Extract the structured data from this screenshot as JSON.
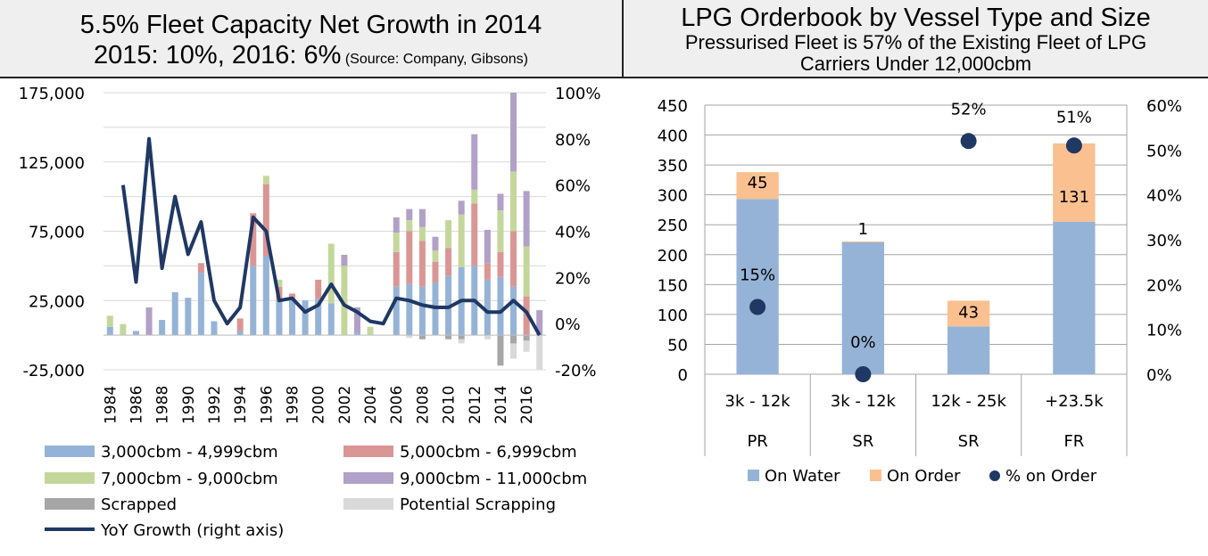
{
  "left_panel": {
    "title_line1": "5.5% Fleet Capacity Net Growth in 2014",
    "title_line2": "2015: 10%, 2016: 6%",
    "source": "(Source: Company, Gibsons)"
  },
  "right_panel": {
    "title": "LPG Orderbook by Vessel Type and Size",
    "subtitle_line1": "Pressurised Fleet is 57% of the Existing Fleet of LPG",
    "subtitle_line2": "Carriers Under 12,000cbm"
  },
  "chart_data": [
    {
      "type": "bar",
      "stacked": true,
      "title": "",
      "x": [
        1984,
        1985,
        1986,
        1987,
        1988,
        1989,
        1990,
        1991,
        1992,
        1993,
        1994,
        1995,
        1996,
        1997,
        1998,
        1999,
        2000,
        2001,
        2002,
        2003,
        2004,
        2005,
        2006,
        2007,
        2008,
        2009,
        2010,
        2011,
        2012,
        2013,
        2014,
        2015,
        2016,
        2017
      ],
      "x_tick_labels": [
        "1984",
        "1986",
        "1988",
        "1990",
        "1992",
        "1994",
        "1996",
        "1998",
        "2000",
        "2002",
        "2004",
        "2006",
        "2008",
        "2010",
        "2012",
        "2014",
        "2016"
      ],
      "y_ticks": [
        "175,000",
        "125,000",
        "75,000",
        "25,000",
        "-25,000"
      ],
      "ylim": [
        -25000,
        175000
      ],
      "y2_ticks": [
        "100%",
        "80%",
        "60%",
        "40%",
        "20%",
        "0%",
        "-20%"
      ],
      "y2lim": [
        -20,
        100
      ],
      "grid": true,
      "legend_position": "bottom",
      "series": [
        {
          "name": "3,000cbm - 4,999cbm",
          "color": "#95b3d7",
          "values": [
            6000,
            0,
            3000,
            0,
            11000,
            31000,
            27000,
            45000,
            10000,
            0,
            3000,
            50000,
            57000,
            25000,
            25000,
            25000,
            26000,
            23000,
            0,
            2000,
            0,
            0,
            35000,
            37000,
            35000,
            38000,
            43000,
            49000,
            50000,
            40000,
            42000,
            35000,
            0,
            0
          ]
        },
        {
          "name": "5,000cbm - 6,999cbm",
          "color": "#da9694",
          "values": [
            0,
            0,
            0,
            0,
            0,
            0,
            0,
            7000,
            0,
            0,
            9000,
            38000,
            52000,
            10000,
            5000,
            0,
            14000,
            0,
            0,
            0,
            0,
            0,
            25000,
            38000,
            33000,
            15000,
            20000,
            0,
            45000,
            12000,
            18000,
            40000,
            28000,
            0
          ]
        },
        {
          "name": "7,000cbm - 9,000cbm",
          "color": "#c4d79b",
          "values": [
            8000,
            8000,
            0,
            0,
            0,
            0,
            0,
            0,
            0,
            0,
            0,
            0,
            6000,
            5000,
            0,
            0,
            0,
            43000,
            50000,
            0,
            6000,
            0,
            14000,
            8000,
            10000,
            8000,
            20000,
            38000,
            10000,
            0,
            30000,
            43000,
            36000,
            0
          ]
        },
        {
          "name": "9,000cbm - 11,000cbm",
          "color": "#b1a0c7",
          "values": [
            0,
            0,
            0,
            20000,
            0,
            0,
            0,
            0,
            0,
            0,
            0,
            0,
            0,
            0,
            0,
            0,
            0,
            0,
            8000,
            18000,
            0,
            0,
            11000,
            8000,
            13000,
            10000,
            0,
            10000,
            40000,
            24000,
            12000,
            57000,
            40000,
            18000
          ]
        },
        {
          "name": "Scrapped",
          "color": "#a6a6a6",
          "values": [
            0,
            0,
            0,
            0,
            0,
            0,
            0,
            0,
            0,
            0,
            0,
            0,
            0,
            0,
            0,
            0,
            0,
            0,
            0,
            0,
            0,
            0,
            0,
            0,
            -3000,
            0,
            -3000,
            -3000,
            0,
            0,
            -22000,
            -6000,
            -4000,
            0
          ]
        },
        {
          "name": "Potential Scrapping",
          "color": "#d9d9d9",
          "values": [
            0,
            0,
            0,
            0,
            0,
            0,
            0,
            0,
            0,
            0,
            0,
            0,
            0,
            0,
            0,
            0,
            0,
            0,
            0,
            0,
            0,
            0,
            0,
            -2000,
            0,
            0,
            0,
            -3000,
            0,
            -3000,
            0,
            -11000,
            -8000,
            -25000
          ]
        },
        {
          "name": "YoY Growth (right axis)",
          "color": "#1f3864",
          "axis": "right",
          "type": "line",
          "values": [
            null,
            60,
            18,
            80,
            24,
            55,
            30,
            44,
            10,
            0,
            7,
            46,
            40,
            10,
            11,
            5,
            8,
            17,
            8,
            5,
            1,
            0,
            11,
            10,
            8,
            7,
            7,
            10,
            10,
            5,
            5,
            10,
            5,
            -5
          ]
        }
      ]
    },
    {
      "type": "bar",
      "stacked": true,
      "title": "",
      "categories": [
        "3k  - 12k",
        "3k  - 12k",
        "12k - 25k",
        "+23.5k"
      ],
      "category_groups": [
        "PR",
        "SR",
        "SR",
        "FR"
      ],
      "y_ticks": [
        "450",
        "400",
        "350",
        "300",
        "250",
        "200",
        "150",
        "100",
        "50",
        "0"
      ],
      "ylim": [
        0,
        450
      ],
      "y2_ticks": [
        "60%",
        "50%",
        "40%",
        "30%",
        "20%",
        "10%",
        "0%"
      ],
      "y2lim": [
        0,
        60
      ],
      "grid": true,
      "legend_position": "bottom",
      "series": [
        {
          "name": "On Water",
          "color": "#95b3d7",
          "values": [
            293,
            221,
            80,
            255
          ]
        },
        {
          "name": "On Order",
          "color": "#fac090",
          "values": [
            45,
            1,
            43,
            131
          ],
          "labels": [
            "45",
            "1",
            "43",
            "131"
          ]
        },
        {
          "name": "% on Order",
          "color": "#1f3864",
          "type": "scatter",
          "axis": "right",
          "values": [
            15,
            0,
            52,
            51
          ],
          "labels": [
            "15%",
            "0%",
            "52%",
            "51%"
          ]
        }
      ]
    }
  ]
}
